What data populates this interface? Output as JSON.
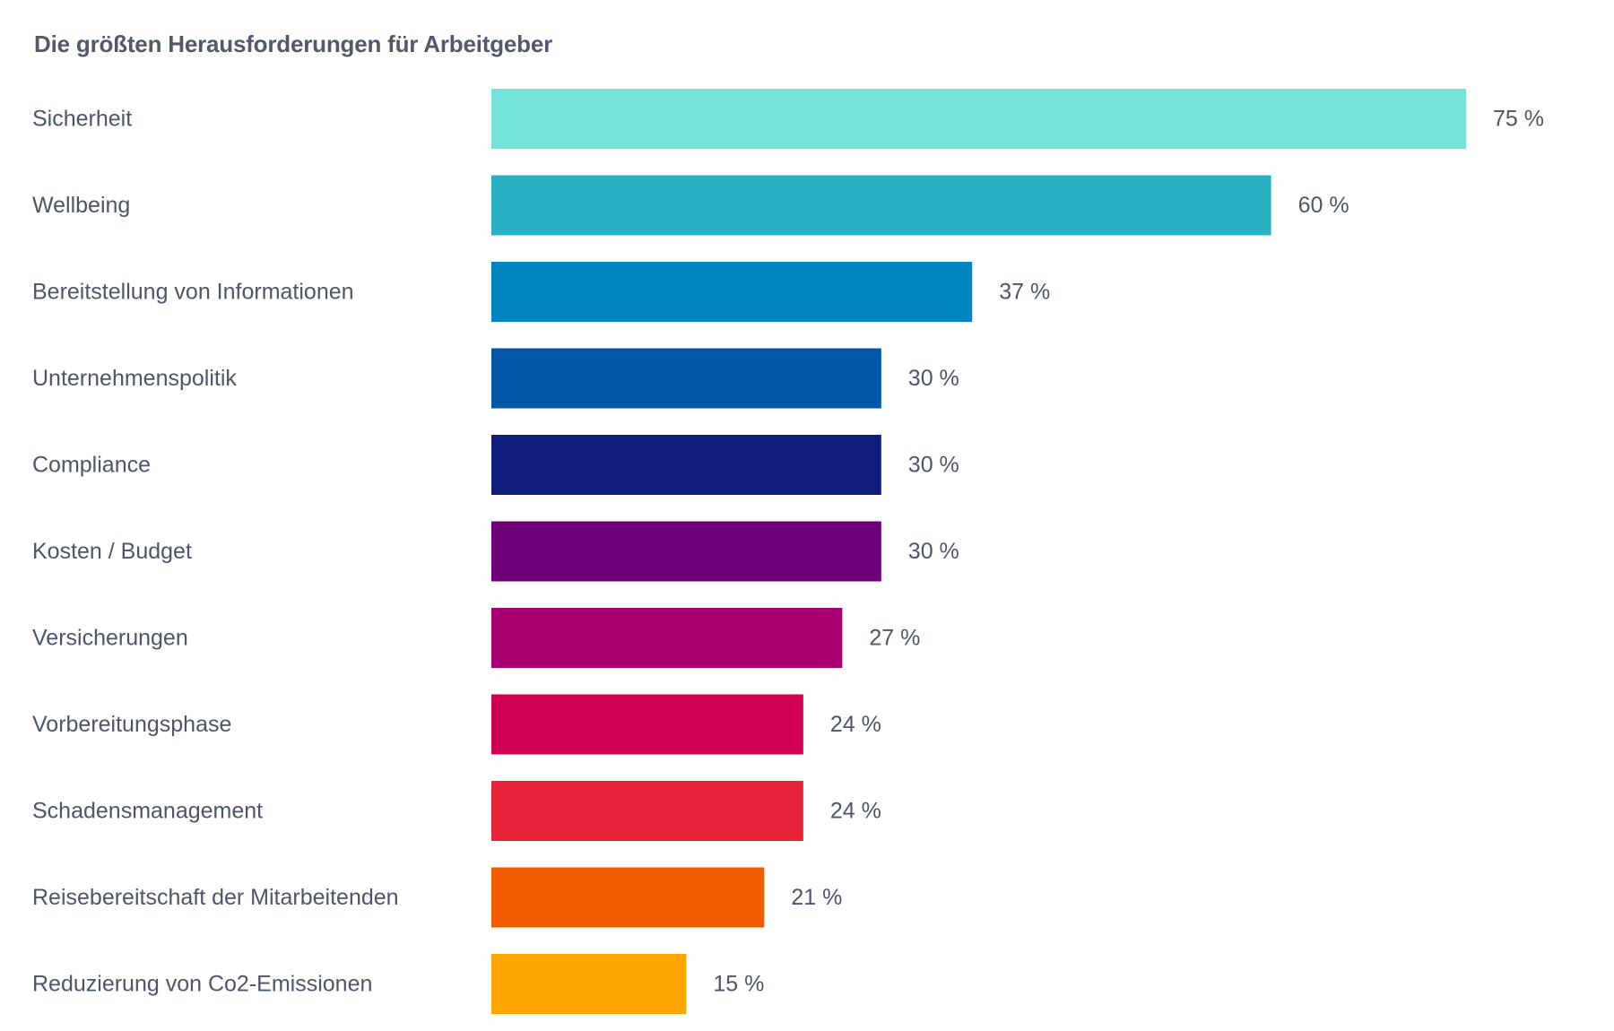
{
  "chart_data": {
    "type": "bar",
    "orientation": "horizontal",
    "title": "Die größten Herausforderungen für Arbeitgeber",
    "categories": [
      "Sicherheit",
      "Wellbeing",
      "Bereitstellung von Informationen",
      "Unternehmenspolitik",
      "Compliance",
      "Kosten / Budget",
      "Versicherungen",
      "Vorbereitungsphase",
      "Schadensmanagement",
      "Reisebereitschaft der Mitarbeitenden",
      "Reduzierung von Co2-Emissionen"
    ],
    "values": [
      75,
      60,
      37,
      30,
      30,
      30,
      27,
      24,
      24,
      21,
      15
    ],
    "value_labels": [
      "75 %",
      "60 %",
      "37 %",
      "30 %",
      "30 %",
      "30 %",
      "27 %",
      "24 %",
      "24 %",
      "21 %",
      "15 %"
    ],
    "colors": [
      "#75e2da",
      "#2ab0c4",
      "#0285be",
      "#0057a8",
      "#101e7d",
      "#6f0079",
      "#a8006f",
      "#d20052",
      "#e92337",
      "#f25c00",
      "#ffa600"
    ],
    "unit": "%",
    "xlim": [
      0,
      75
    ],
    "grid": false,
    "legend": "none"
  }
}
